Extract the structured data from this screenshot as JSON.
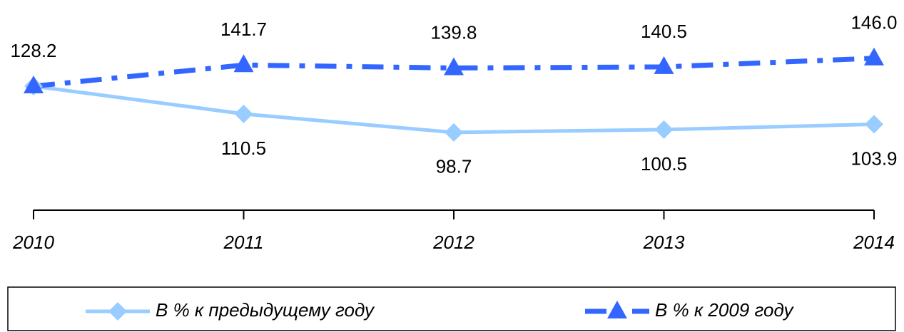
{
  "chart_data": {
    "type": "line",
    "categories": [
      "2010",
      "2011",
      "2012",
      "2013",
      "2014"
    ],
    "series": [
      {
        "name": "В % к предыдущему году",
        "color": "#99ccff",
        "marker": "diamond",
        "linestyle": "solid",
        "values": [
          128.2,
          110.5,
          98.7,
          100.5,
          103.9
        ],
        "value_labels": [
          null,
          "110.5",
          "98.7",
          "100.5",
          "103.9"
        ],
        "label_position": "below"
      },
      {
        "name": "В % к 2009 году",
        "color": "#3366ff",
        "marker": "triangle",
        "linestyle": "dashdot",
        "values": [
          128.2,
          141.7,
          139.8,
          140.5,
          146.0
        ],
        "value_labels": [
          "128.2",
          "141.7",
          "139.8",
          "140.5",
          "146.0"
        ],
        "label_position": "above"
      }
    ],
    "ylim": [
      60,
      160
    ],
    "legend": "bottom"
  }
}
